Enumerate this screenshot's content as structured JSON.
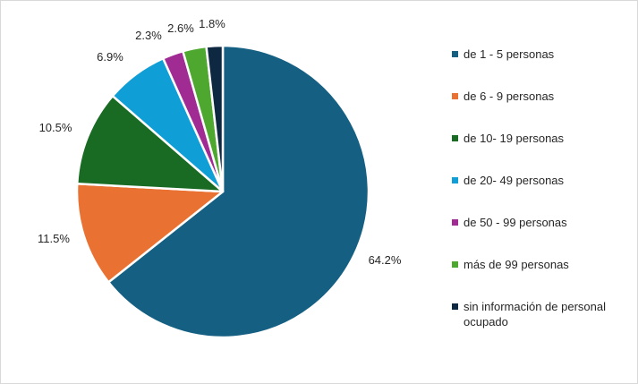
{
  "chart_data": {
    "type": "pie",
    "title": "",
    "legend_position": "right",
    "slices": [
      {
        "label": "de 1 - 5 personas",
        "value": 64.2,
        "value_label": "64.2%",
        "color": "#156082"
      },
      {
        "label": "de 6 - 9 personas",
        "value": 11.5,
        "value_label": "11.5%",
        "color": "#E97132"
      },
      {
        "label": "de 10- 19 personas",
        "value": 10.5,
        "value_label": "10.5%",
        "color": "#196B24"
      },
      {
        "label": "de 20- 49 personas",
        "value": 6.9,
        "value_label": "6.9%",
        "color": "#0F9ED5"
      },
      {
        "label": "de 50 - 99 personas",
        "value": 2.3,
        "value_label": "2.3%",
        "color": "#A02B93"
      },
      {
        "label": "más de 99 personas",
        "value": 2.6,
        "value_label": "2.6%",
        "color": "#4EA72E"
      },
      {
        "label": "sin información de personal ocupado",
        "value": 1.8,
        "value_label": "1.8%",
        "color": "#0E2841"
      }
    ]
  }
}
